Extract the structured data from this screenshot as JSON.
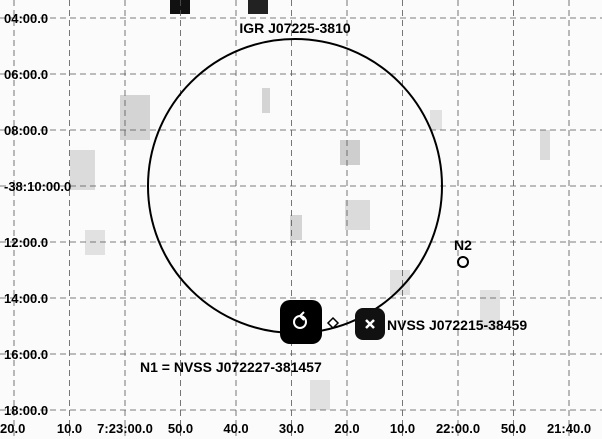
{
  "source_label": "IGR J07225-3810",
  "labels": {
    "n2": "N2",
    "nvss_east": "NVSS J072215-38459",
    "n1": "N1 = NVSS J072227-381457"
  },
  "y_axis": {
    "ticks": [
      "04:00.0",
      "06:00.0",
      "08:00.0",
      "-38:10:00.0",
      "12:00.0",
      "14:00.0",
      "16:00.0",
      "18:00.0"
    ]
  },
  "x_axis": {
    "ticks": [
      "20.0",
      "10.0",
      "7:23:00.0",
      "50.0",
      "40.0",
      "30.0",
      "20.0",
      "10.0",
      "22:00.0",
      "50.0",
      "21:40.0"
    ]
  }
}
